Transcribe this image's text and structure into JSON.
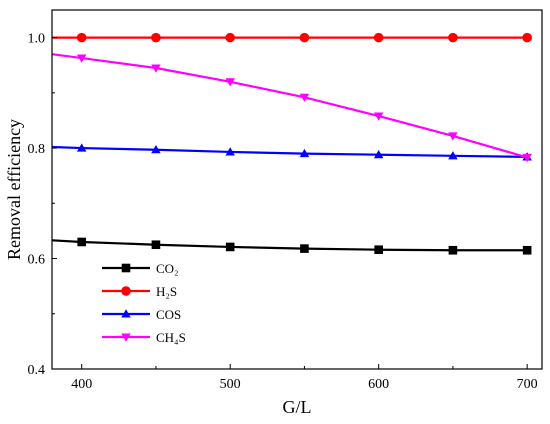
{
  "chart_data": {
    "type": "line",
    "title": "",
    "xlabel": "G/L",
    "ylabel": "Removal efficiency",
    "xlim": [
      380,
      710
    ],
    "ylim": [
      0.4,
      1.05
    ],
    "x_ticks": [
      400,
      500,
      600,
      700
    ],
    "y_ticks": [
      0.4,
      0.6,
      0.8,
      1.0
    ],
    "x_tick_labels": [
      "400",
      "500",
      "600",
      "700"
    ],
    "y_tick_labels": [
      "0.4",
      "0.6",
      "0.8",
      "1.0"
    ],
    "legend_position": "lower-left",
    "grid": false,
    "series": [
      {
        "name": "CO₂",
        "color": "#000000",
        "marker": "square",
        "curve": {
          "x": [
            380,
            400,
            450,
            500,
            550,
            600,
            650,
            700
          ],
          "y": [
            0.633,
            0.63,
            0.625,
            0.621,
            0.618,
            0.616,
            0.615,
            0.615
          ]
        },
        "markers": {
          "x": [
            400,
            450,
            500,
            550,
            600,
            650,
            700
          ],
          "y": [
            0.63,
            0.625,
            0.621,
            0.618,
            0.616,
            0.615,
            0.615
          ]
        }
      },
      {
        "name": "H₂S",
        "color": "#ff0000",
        "marker": "circle",
        "curve": {
          "x": [
            380,
            400,
            450,
            500,
            550,
            600,
            650,
            700
          ],
          "y": [
            1.0,
            1.0,
            1.0,
            1.0,
            1.0,
            1.0,
            1.0,
            1.0
          ]
        },
        "markers": {
          "x": [
            400,
            450,
            500,
            550,
            600,
            650,
            700
          ],
          "y": [
            1.0,
            1.0,
            1.0,
            1.0,
            1.0,
            1.0,
            1.0
          ]
        }
      },
      {
        "name": "COS",
        "color": "#0000ff",
        "marker": "triangle-up",
        "curve": {
          "x": [
            380,
            400,
            450,
            500,
            550,
            600,
            650,
            700
          ],
          "y": [
            0.802,
            0.8,
            0.797,
            0.793,
            0.79,
            0.788,
            0.786,
            0.784
          ]
        },
        "markers": {
          "x": [
            400,
            450,
            500,
            550,
            600,
            650,
            700
          ],
          "y": [
            0.8,
            0.797,
            0.793,
            0.79,
            0.788,
            0.786,
            0.784
          ]
        }
      },
      {
        "name": "CH₄S",
        "color": "#ff00ff",
        "marker": "triangle-down",
        "curve": {
          "x": [
            380,
            400,
            450,
            500,
            550,
            600,
            650,
            700
          ],
          "y": [
            0.97,
            0.963,
            0.945,
            0.92,
            0.892,
            0.858,
            0.822,
            0.783
          ]
        },
        "markers": {
          "x": [
            400,
            450,
            500,
            550,
            600,
            650,
            700
          ],
          "y": [
            0.963,
            0.945,
            0.92,
            0.892,
            0.858,
            0.822,
            0.783
          ]
        }
      }
    ]
  }
}
